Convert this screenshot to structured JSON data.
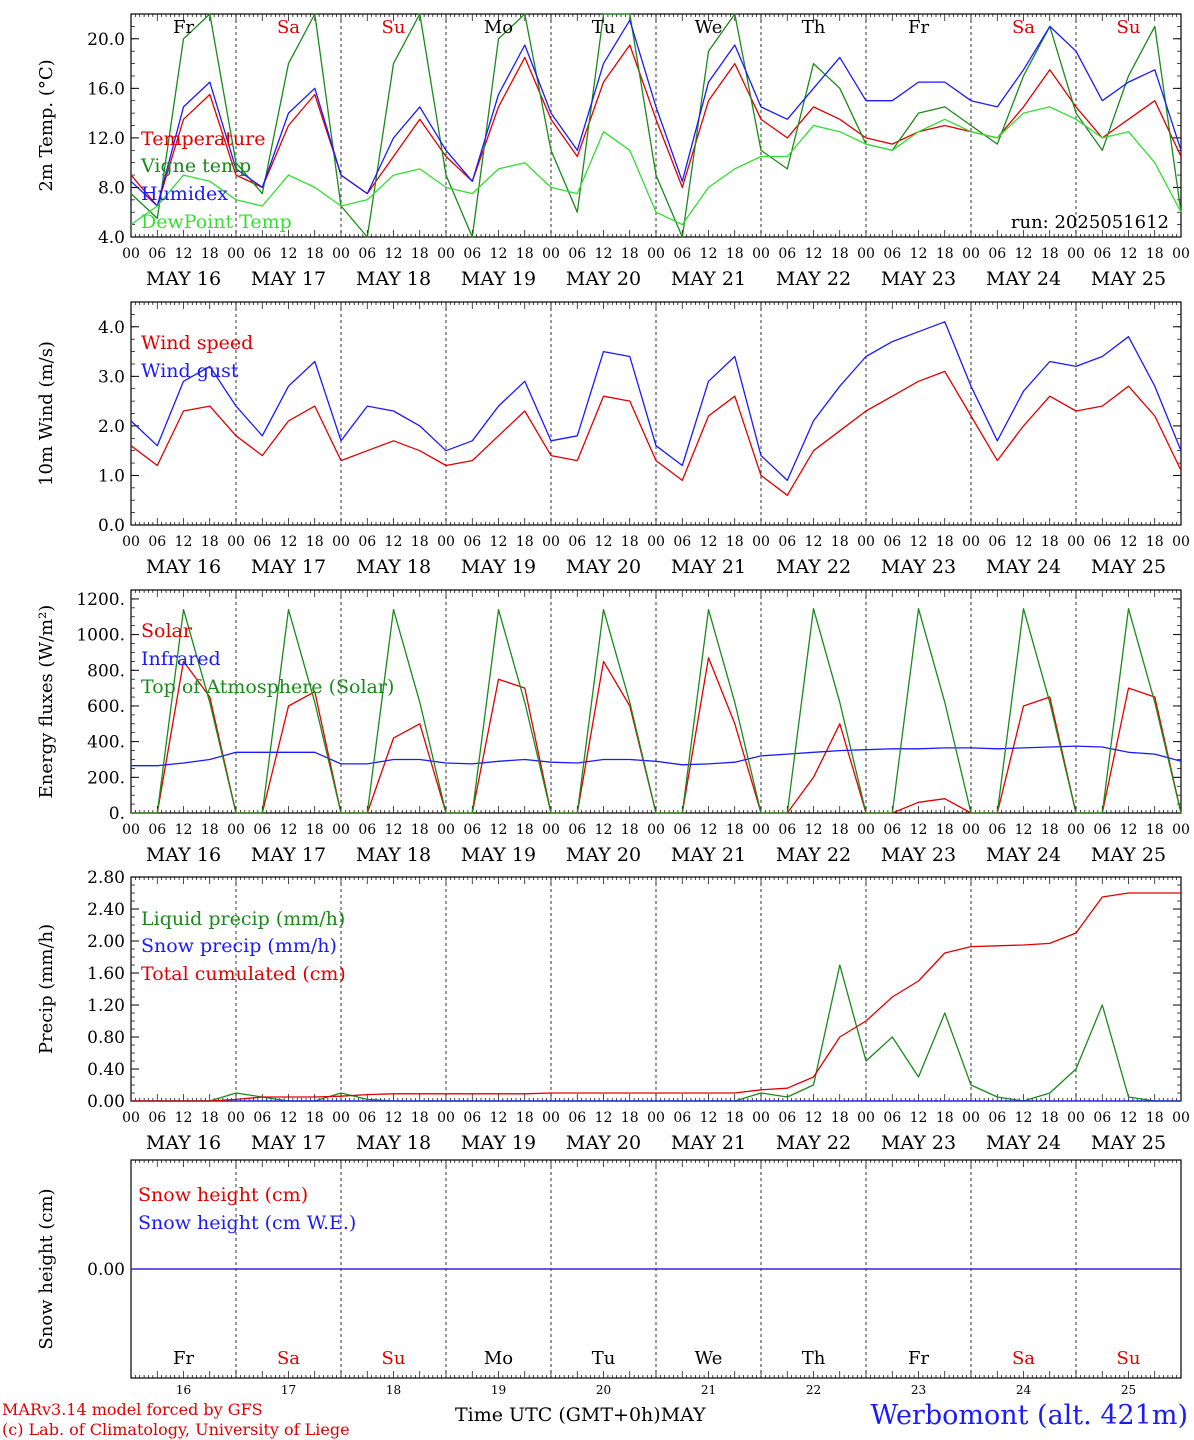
{
  "footer": {
    "model": "MARv3.14 model forced by GFS",
    "copyright": "(c) Lab. of Climatology, University of Liege",
    "time_label": "Time UTC (GMT+0h)",
    "month_label": "MAY",
    "station": "Werbomont (alt. 421m)"
  },
  "colors": {
    "red": "#e00000",
    "green": "#1a8a1a",
    "blue": "#1a1aff",
    "lightgreen": "#33dd33"
  },
  "days": [
    {
      "abbr": "Fr",
      "date": "MAY 16",
      "num": "16",
      "weekend": false
    },
    {
      "abbr": "Sa",
      "date": "MAY 17",
      "num": "17",
      "weekend": true
    },
    {
      "abbr": "Su",
      "date": "MAY 18",
      "num": "18",
      "weekend": true
    },
    {
      "abbr": "Mo",
      "date": "MAY 19",
      "num": "19",
      "weekend": false
    },
    {
      "abbr": "Tu",
      "date": "MAY 20",
      "num": "20",
      "weekend": false
    },
    {
      "abbr": "We",
      "date": "MAY 21",
      "num": "21",
      "weekend": false
    },
    {
      "abbr": "Th",
      "date": "MAY 22",
      "num": "22",
      "weekend": false
    },
    {
      "abbr": "Fr",
      "date": "MAY 23",
      "num": "23",
      "weekend": false
    },
    {
      "abbr": "Sa",
      "date": "MAY 24",
      "num": "24",
      "weekend": true
    },
    {
      "abbr": "Su",
      "date": "MAY 25",
      "num": "25",
      "weekend": true
    }
  ],
  "hour_ticks": [
    "00",
    "06",
    "12",
    "18"
  ],
  "chart_data": [
    {
      "type": "line",
      "ylabel": "2m Temp. (°C)",
      "ylim": [
        4.0,
        22.0
      ],
      "yticks": [
        "4.0",
        "8.0",
        "12.0",
        "16.0",
        "20.0"
      ],
      "ytick_values": [
        4,
        8,
        12,
        16,
        20
      ],
      "annotation": "run: 2025051612",
      "x_step_hours": 6,
      "series": [
        {
          "name": "Temperature",
          "color": "#e00000",
          "values": [
            9.0,
            6.5,
            13.5,
            15.5,
            9.0,
            8.0,
            13.0,
            15.5,
            9.0,
            7.5,
            10.5,
            13.5,
            10.5,
            8.5,
            14.5,
            18.5,
            13.5,
            10.5,
            16.5,
            19.5,
            13.5,
            8.0,
            15.0,
            18.0,
            13.5,
            12.0,
            14.5,
            13.5,
            12.0,
            11.5,
            12.5,
            13.0,
            12.5,
            12.0,
            14.5,
            17.5,
            14.5,
            12.0,
            13.5,
            15.0,
            10.5
          ]
        },
        {
          "name": "Vigne temp",
          "color": "#1a8a1a",
          "values": [
            7.5,
            5.5,
            20.0,
            23.0,
            10.0,
            7.5,
            18.0,
            23.0,
            6.5,
            4.0,
            18.0,
            23.0,
            9.0,
            4.0,
            20.0,
            25.0,
            11.0,
            6.0,
            22.0,
            25.0,
            9.0,
            3.5,
            19.0,
            22.0,
            11.0,
            9.5,
            18.0,
            16.0,
            11.5,
            11.0,
            14.0,
            14.5,
            13.0,
            11.5,
            17.0,
            21.0,
            14.0,
            11.0,
            17.0,
            21.0,
            6.0
          ]
        },
        {
          "name": "Humidex",
          "color": "#1a1aff",
          "values": [
            8.5,
            6.5,
            14.5,
            16.5,
            9.5,
            8.0,
            14.0,
            16.0,
            9.0,
            7.5,
            12.0,
            14.5,
            11.0,
            8.5,
            15.5,
            19.5,
            14.0,
            11.0,
            18.0,
            21.5,
            14.5,
            8.5,
            16.5,
            19.5,
            14.5,
            13.5,
            16.0,
            18.5,
            15.0,
            15.0,
            16.5,
            16.5,
            15.0,
            14.5,
            17.5,
            21.0,
            19.0,
            15.0,
            16.5,
            17.5,
            11.0
          ]
        },
        {
          "name": "DewPoint Temp",
          "color": "#33dd33",
          "values": [
            5.0,
            6.5,
            9.0,
            8.5,
            7.0,
            6.5,
            9.0,
            8.0,
            6.5,
            7.0,
            9.0,
            9.5,
            8.0,
            7.5,
            9.5,
            10.0,
            8.0,
            7.5,
            12.5,
            11.0,
            6.0,
            5.0,
            8.0,
            9.5,
            10.5,
            10.5,
            13.0,
            12.5,
            11.5,
            11.0,
            12.5,
            13.5,
            12.5,
            12.0,
            14.0,
            14.5,
            13.5,
            12.0,
            12.5,
            10.0,
            6.0
          ]
        }
      ]
    },
    {
      "type": "line",
      "ylabel": "10m Wind (m/s)",
      "ylim": [
        0.0,
        4.5
      ],
      "yticks": [
        "0.0",
        "1.0",
        "2.0",
        "3.0",
        "4.0"
      ],
      "ytick_values": [
        0,
        1,
        2,
        3,
        4
      ],
      "x_step_hours": 6,
      "series": [
        {
          "name": "Wind speed",
          "color": "#e00000",
          "values": [
            1.6,
            1.2,
            2.3,
            2.4,
            1.8,
            1.4,
            2.1,
            2.4,
            1.3,
            1.5,
            1.7,
            1.5,
            1.2,
            1.3,
            1.8,
            2.3,
            1.4,
            1.3,
            2.6,
            2.5,
            1.3,
            0.9,
            2.2,
            2.6,
            1.0,
            0.6,
            1.5,
            1.9,
            2.3,
            2.6,
            2.9,
            3.1,
            2.2,
            1.3,
            2.0,
            2.6,
            2.3,
            2.4,
            2.8,
            2.2,
            1.1
          ]
        },
        {
          "name": "Wind gust",
          "color": "#1a1aff",
          "values": [
            2.1,
            1.6,
            2.9,
            3.2,
            2.4,
            1.8,
            2.8,
            3.3,
            1.7,
            2.4,
            2.3,
            2.0,
            1.5,
            1.7,
            2.4,
            2.9,
            1.7,
            1.8,
            3.5,
            3.4,
            1.6,
            1.2,
            2.9,
            3.4,
            1.4,
            0.9,
            2.1,
            2.8,
            3.4,
            3.7,
            3.9,
            4.1,
            2.8,
            1.7,
            2.7,
            3.3,
            3.2,
            3.4,
            3.8,
            2.8,
            1.5
          ]
        }
      ]
    },
    {
      "type": "line",
      "ylabel": "Energy fluxes (W/m²)",
      "ylim": [
        0,
        1250
      ],
      "yticks": [
        "0.",
        "200.",
        "400.",
        "600.",
        "800.",
        "1000.",
        "1200."
      ],
      "ytick_values": [
        0,
        200,
        400,
        600,
        800,
        1000,
        1200
      ],
      "x_step_hours": 6,
      "series": [
        {
          "name": "Solar",
          "color": "#e00000",
          "values": [
            0,
            0,
            850,
            650,
            0,
            0,
            600,
            680,
            0,
            0,
            420,
            500,
            0,
            0,
            750,
            700,
            0,
            0,
            850,
            600,
            0,
            0,
            870,
            500,
            0,
            0,
            200,
            500,
            0,
            0,
            60,
            80,
            0,
            0,
            600,
            650,
            0,
            0,
            700,
            650,
            0
          ]
        },
        {
          "name": "Infrared",
          "color": "#1a1aff",
          "values": [
            265,
            265,
            280,
            300,
            340,
            340,
            340,
            340,
            275,
            275,
            300,
            300,
            280,
            275,
            290,
            300,
            285,
            280,
            300,
            300,
            290,
            270,
            275,
            285,
            320,
            330,
            340,
            350,
            355,
            360,
            360,
            365,
            365,
            360,
            365,
            370,
            375,
            370,
            340,
            330,
            290
          ]
        },
        {
          "name": "Top of Atmosphere (Solar)",
          "color": "#1a8a1a",
          "values": [
            0,
            0,
            1140,
            620,
            0,
            0,
            1140,
            620,
            0,
            0,
            1140,
            620,
            0,
            0,
            1140,
            620,
            0,
            0,
            1140,
            620,
            0,
            0,
            1140,
            620,
            0,
            0,
            1145,
            620,
            0,
            0,
            1145,
            620,
            0,
            0,
            1145,
            620,
            0,
            0,
            1145,
            620,
            0
          ]
        }
      ]
    },
    {
      "type": "line",
      "ylabel": "Precip (mm/h)",
      "ylim": [
        0.0,
        2.8
      ],
      "yticks": [
        "0.00",
        "0.40",
        "0.80",
        "1.20",
        "1.60",
        "2.00",
        "2.40",
        "2.80"
      ],
      "ytick_values": [
        0,
        0.4,
        0.8,
        1.2,
        1.6,
        2.0,
        2.4,
        2.8
      ],
      "x_step_hours": 6,
      "series": [
        {
          "name": "Liquid precip (mm/h)",
          "color": "#1a8a1a",
          "values": [
            0,
            0,
            0,
            0,
            0.1,
            0.05,
            0,
            0,
            0.1,
            0.02,
            0,
            0,
            0,
            0,
            0,
            0,
            0,
            0,
            0,
            0,
            0,
            0,
            0,
            0,
            0.1,
            0.05,
            0.2,
            1.7,
            0.5,
            0.8,
            0.3,
            1.1,
            0.2,
            0.05,
            0,
            0.1,
            0.4,
            1.2,
            0.05,
            0,
            0
          ]
        },
        {
          "name": "Snow precip (mm/h)",
          "color": "#1a1aff",
          "values": [
            0,
            0,
            0,
            0,
            0,
            0,
            0,
            0,
            0,
            0,
            0,
            0,
            0,
            0,
            0,
            0,
            0,
            0,
            0,
            0,
            0,
            0,
            0,
            0,
            0,
            0,
            0,
            0,
            0,
            0,
            0,
            0,
            0,
            0,
            0,
            0,
            0,
            0,
            0,
            0,
            0
          ]
        },
        {
          "name": "Total cumulated (cm)",
          "color": "#e00000",
          "values": [
            0,
            0,
            0,
            0,
            0.02,
            0.05,
            0.05,
            0.05,
            0.06,
            0.08,
            0.09,
            0.09,
            0.09,
            0.09,
            0.09,
            0.09,
            0.1,
            0.1,
            0.1,
            0.1,
            0.1,
            0.1,
            0.1,
            0.1,
            0.14,
            0.16,
            0.3,
            0.8,
            1.0,
            1.3,
            1.5,
            1.85,
            1.93,
            1.94,
            1.95,
            1.97,
            2.1,
            2.55,
            2.6,
            2.6,
            2.6
          ]
        }
      ]
    },
    {
      "type": "line",
      "ylabel": "Snow height (cm)",
      "ylim": [
        -1.0,
        1.0
      ],
      "yticks": [
        "0.00"
      ],
      "ytick_values": [
        0
      ],
      "x_step_hours": 6,
      "series": [
        {
          "name": "Snow height (cm)",
          "color": "#e00000",
          "values": [
            0,
            0
          ]
        },
        {
          "name": "Snow height (cm W.E.)",
          "color": "#1a1aff",
          "values": [
            0,
            0
          ]
        }
      ]
    }
  ]
}
